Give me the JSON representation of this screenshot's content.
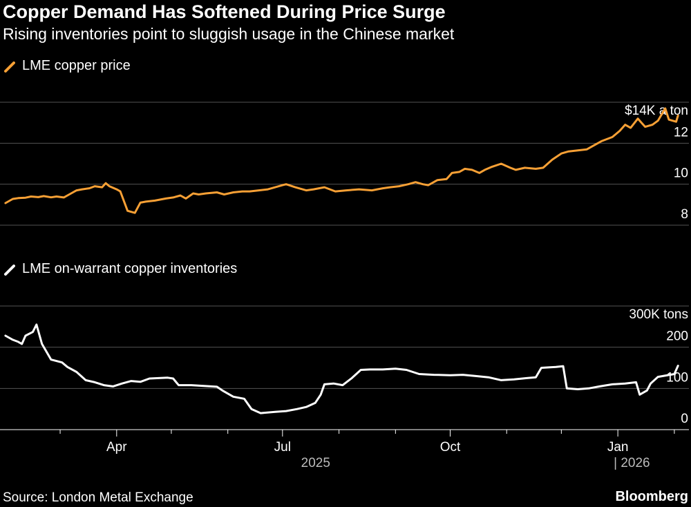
{
  "header": {
    "title": "Copper Demand Has Softened During Price Surge",
    "subtitle": "Rising inventories point to sluggish usage in the Chinese market"
  },
  "footer": {
    "source": "Source: London Metal Exchange",
    "brand": "Bloomberg"
  },
  "colors": {
    "background": "#000000",
    "price_line": "#f7a035",
    "inventory_line": "#ffffff",
    "grid": "#555555",
    "axis_text": "#ffffff",
    "year_text": "#bbbbbb"
  },
  "chart_data": [
    {
      "type": "line",
      "legend": "LME copper price",
      "unit_label": "$14K a ton",
      "ylim": [
        8000,
        14000
      ],
      "yticks": [
        {
          "value": 14000,
          "label": ""
        },
        {
          "value": 12000,
          "label": "12"
        },
        {
          "value": 10000,
          "label": "10"
        },
        {
          "value": 8000,
          "label": "8"
        }
      ],
      "grid": true,
      "series": [
        {
          "points": [
            [
              "2025-01-30",
              9080
            ],
            [
              "2025-02-03",
              9280
            ],
            [
              "2025-02-06",
              9320
            ],
            [
              "2025-02-10",
              9340
            ],
            [
              "2025-02-13",
              9400
            ],
            [
              "2025-02-17",
              9370
            ],
            [
              "2025-02-20",
              9420
            ],
            [
              "2025-02-24",
              9360
            ],
            [
              "2025-02-27",
              9400
            ],
            [
              "2025-03-03",
              9350
            ],
            [
              "2025-03-06",
              9500
            ],
            [
              "2025-03-10",
              9700
            ],
            [
              "2025-03-13",
              9750
            ],
            [
              "2025-03-17",
              9800
            ],
            [
              "2025-03-20",
              9900
            ],
            [
              "2025-03-24",
              9850
            ],
            [
              "2025-03-26",
              10050
            ],
            [
              "2025-03-28",
              9900
            ],
            [
              "2025-04-01",
              9750
            ],
            [
              "2025-04-03",
              9650
            ],
            [
              "2025-04-07",
              8700
            ],
            [
              "2025-04-09",
              8650
            ],
            [
              "2025-04-11",
              8600
            ],
            [
              "2025-04-14",
              9100
            ],
            [
              "2025-04-17",
              9150
            ],
            [
              "2025-04-22",
              9200
            ],
            [
              "2025-04-28",
              9300
            ],
            [
              "2025-05-02",
              9350
            ],
            [
              "2025-05-06",
              9450
            ],
            [
              "2025-05-09",
              9300
            ],
            [
              "2025-05-13",
              9550
            ],
            [
              "2025-05-16",
              9500
            ],
            [
              "2025-05-20",
              9550
            ],
            [
              "2025-05-26",
              9600
            ],
            [
              "2025-05-30",
              9500
            ],
            [
              "2025-06-04",
              9600
            ],
            [
              "2025-06-09",
              9650
            ],
            [
              "2025-06-13",
              9650
            ],
            [
              "2025-06-18",
              9700
            ],
            [
              "2025-06-23",
              9750
            ],
            [
              "2025-06-27",
              9850
            ],
            [
              "2025-07-01",
              9950
            ],
            [
              "2025-07-03",
              10000
            ],
            [
              "2025-07-08",
              9850
            ],
            [
              "2025-07-14",
              9700
            ],
            [
              "2025-07-18",
              9750
            ],
            [
              "2025-07-24",
              9850
            ],
            [
              "2025-07-30",
              9650
            ],
            [
              "2025-08-05",
              9700
            ],
            [
              "2025-08-12",
              9750
            ],
            [
              "2025-08-19",
              9700
            ],
            [
              "2025-08-25",
              9800
            ],
            [
              "2025-08-29",
              9850
            ],
            [
              "2025-09-03",
              9900
            ],
            [
              "2025-09-08",
              10000
            ],
            [
              "2025-09-12",
              10100
            ],
            [
              "2025-09-16",
              10000
            ],
            [
              "2025-09-19",
              9950
            ],
            [
              "2025-09-24",
              10200
            ],
            [
              "2025-09-29",
              10250
            ],
            [
              "2025-10-02",
              10550
            ],
            [
              "2025-10-06",
              10600
            ],
            [
              "2025-10-09",
              10750
            ],
            [
              "2025-10-13",
              10700
            ],
            [
              "2025-10-17",
              10550
            ],
            [
              "2025-10-20",
              10700
            ],
            [
              "2025-10-24",
              10850
            ],
            [
              "2025-10-29",
              11000
            ],
            [
              "2025-11-03",
              10800
            ],
            [
              "2025-11-06",
              10700
            ],
            [
              "2025-11-11",
              10800
            ],
            [
              "2025-11-17",
              10750
            ],
            [
              "2025-11-21",
              10800
            ],
            [
              "2025-11-26",
              11200
            ],
            [
              "2025-12-01",
              11500
            ],
            [
              "2025-12-05",
              11600
            ],
            [
              "2025-12-10",
              11650
            ],
            [
              "2025-12-15",
              11700
            ],
            [
              "2025-12-19",
              11900
            ],
            [
              "2025-12-23",
              12100
            ],
            [
              "2025-12-29",
              12300
            ],
            [
              "2026-01-02",
              12600
            ],
            [
              "2026-01-05",
              12900
            ],
            [
              "2026-01-08",
              12750
            ],
            [
              "2026-01-12",
              13200
            ],
            [
              "2026-01-14",
              13000
            ],
            [
              "2026-01-16",
              12800
            ],
            [
              "2026-01-20",
              12900
            ],
            [
              "2026-01-23",
              13100
            ],
            [
              "2026-01-27",
              13700
            ],
            [
              "2026-01-29",
              13150
            ],
            [
              "2026-02-02",
              13050
            ],
            [
              "2026-02-03",
              13350
            ]
          ]
        }
      ]
    },
    {
      "type": "line",
      "legend": "LME on-warrant copper inventories",
      "unit_label": "300K tons",
      "ylim": [
        0,
        300000
      ],
      "yticks": [
        {
          "value": 300000,
          "label": ""
        },
        {
          "value": 200000,
          "label": "200"
        },
        {
          "value": 100000,
          "label": "100"
        },
        {
          "value": 0,
          "label": "0"
        }
      ],
      "grid": true,
      "series": [
        {
          "points": [
            [
              "2025-01-30",
              228000
            ],
            [
              "2025-02-03",
              218000
            ],
            [
              "2025-02-06",
              213000
            ],
            [
              "2025-02-08",
              208000
            ],
            [
              "2025-02-10",
              228000
            ],
            [
              "2025-02-14",
              237000
            ],
            [
              "2025-02-16",
              255000
            ],
            [
              "2025-02-19",
              208000
            ],
            [
              "2025-02-24",
              170000
            ],
            [
              "2025-03-02",
              163000
            ],
            [
              "2025-03-05",
              152000
            ],
            [
              "2025-03-10",
              140000
            ],
            [
              "2025-03-15",
              120000
            ],
            [
              "2025-03-20",
              115000
            ],
            [
              "2025-03-25",
              108000
            ],
            [
              "2025-03-30",
              105000
            ],
            [
              "2025-04-04",
              112000
            ],
            [
              "2025-04-09",
              118000
            ],
            [
              "2025-04-14",
              116000
            ],
            [
              "2025-04-19",
              124000
            ],
            [
              "2025-04-24",
              125000
            ],
            [
              "2025-04-29",
              126000
            ],
            [
              "2025-05-02",
              124000
            ],
            [
              "2025-05-05",
              108000
            ],
            [
              "2025-05-12",
              108000
            ],
            [
              "2025-05-19",
              106000
            ],
            [
              "2025-05-26",
              104000
            ],
            [
              "2025-05-29",
              95000
            ],
            [
              "2025-06-04",
              80000
            ],
            [
              "2025-06-10",
              75000
            ],
            [
              "2025-06-14",
              50000
            ],
            [
              "2025-06-19",
              40000
            ],
            [
              "2025-06-27",
              43000
            ],
            [
              "2025-07-03",
              45000
            ],
            [
              "2025-07-09",
              50000
            ],
            [
              "2025-07-14",
              55000
            ],
            [
              "2025-07-19",
              65000
            ],
            [
              "2025-07-22",
              85000
            ],
            [
              "2025-07-24",
              110000
            ],
            [
              "2025-07-29",
              112000
            ],
            [
              "2025-08-03",
              108000
            ],
            [
              "2025-08-08",
              125000
            ],
            [
              "2025-08-13",
              145000
            ],
            [
              "2025-08-18",
              146000
            ],
            [
              "2025-08-25",
              146000
            ],
            [
              "2025-09-01",
              148000
            ],
            [
              "2025-09-07",
              145000
            ],
            [
              "2025-09-14",
              135000
            ],
            [
              "2025-09-22",
              133000
            ],
            [
              "2025-10-01",
              132000
            ],
            [
              "2025-10-08",
              133000
            ],
            [
              "2025-10-15",
              130000
            ],
            [
              "2025-10-22",
              127000
            ],
            [
              "2025-10-29",
              120000
            ],
            [
              "2025-11-05",
              122000
            ],
            [
              "2025-11-12",
              125000
            ],
            [
              "2025-11-17",
              127000
            ],
            [
              "2025-11-20",
              150000
            ],
            [
              "2025-11-28",
              152000
            ],
            [
              "2025-12-02",
              154000
            ],
            [
              "2025-12-04",
              100000
            ],
            [
              "2025-12-10",
              98000
            ],
            [
              "2025-12-16",
              100000
            ],
            [
              "2025-12-22",
              105000
            ],
            [
              "2025-12-29",
              110000
            ],
            [
              "2026-01-05",
              112000
            ],
            [
              "2026-01-11",
              115000
            ],
            [
              "2026-01-13",
              85000
            ],
            [
              "2026-01-17",
              95000
            ],
            [
              "2026-01-19",
              112000
            ],
            [
              "2026-01-23",
              128000
            ],
            [
              "2026-02-01",
              135000
            ],
            [
              "2026-02-03",
              155000
            ]
          ]
        }
      ]
    }
  ],
  "x_axis": {
    "domain": [
      "2025-01-27",
      "2026-02-09"
    ],
    "major_ticks": [
      {
        "date": "2025-04-01",
        "label": "Apr"
      },
      {
        "date": "2025-07-01",
        "label": "Jul"
      },
      {
        "date": "2025-10-01",
        "label": "Oct"
      },
      {
        "date": "2026-01-01",
        "label": "Jan"
      }
    ],
    "minor_ticks": [
      "2025-03-01",
      "2025-05-01",
      "2025-06-01",
      "2025-08-01",
      "2025-09-01",
      "2025-11-01",
      "2025-12-01",
      "2026-02-01"
    ],
    "year_labels": [
      {
        "text": "2025",
        "date": "2025-07-01"
      },
      {
        "text": "| 2026",
        "date": "2026-01-01"
      }
    ]
  }
}
